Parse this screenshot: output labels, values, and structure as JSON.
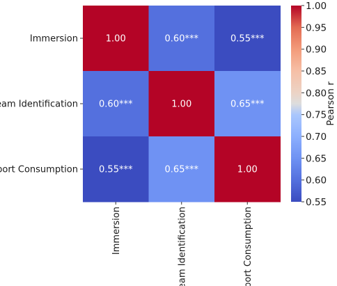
{
  "chart_data": {
    "type": "heatmap",
    "rows": [
      "Immersion",
      "Team Identification",
      "Sport Consumption"
    ],
    "columns": [
      "Immersion",
      "Team Identification",
      "Sport Consumption"
    ],
    "values": [
      [
        1.0,
        0.6,
        0.55
      ],
      [
        0.6,
        1.0,
        0.65
      ],
      [
        0.55,
        0.65,
        1.0
      ]
    ],
    "cell_labels": [
      [
        "1.00",
        "0.60***",
        "0.55***"
      ],
      [
        "0.60***",
        "1.00",
        "0.65***"
      ],
      [
        "0.55***",
        "0.65***",
        "1.00"
      ]
    ],
    "colorbar": {
      "label": "Pearson r",
      "range": [
        0.55,
        1.0
      ],
      "ticks": [
        "0.55",
        "0.60",
        "0.65",
        "0.70",
        "0.75",
        "0.80",
        "0.85",
        "0.90",
        "0.95",
        "1.00"
      ],
      "colormap": "coolwarm",
      "colors": [
        "#3b4cc0",
        "#dddddd",
        "#b40426"
      ]
    },
    "title": "",
    "xlabel": "",
    "ylabel": ""
  }
}
